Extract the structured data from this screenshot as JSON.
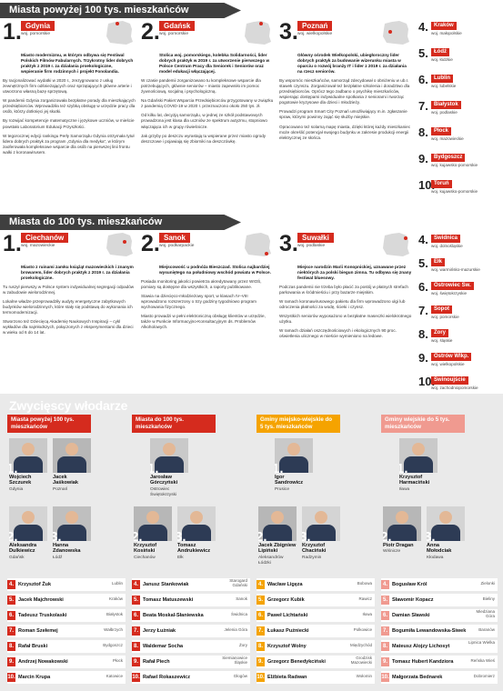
{
  "banner1": "Miasta powyżej 100 tys. mieszkańców",
  "banner2": "Miasta do 100 tys. mieszkańców",
  "winners_title": "Zwycięscy włodarze",
  "big": [
    {
      "num": "1.",
      "name": "Gdynia",
      "woj": "woj. pomorskie",
      "hl": "Miasto modernizmu, w którym odbywa się Festiwal Polskich Filmów Fabularnych. Trzykrotny lider dobrych praktyk z 2019 r. za działania proekologiczne, wspieranie firm rodzinnych i projekt Fonolandia.",
      "paras": [
        "By racjonalizować wydatki w 2020 r., zrezygnowano z usług zewnętrznych firm odśnieżających oraz sprzątających główne arterie i utworzono własną bazę sprzętową.",
        "W pandemii Gdynia zorganizowała bezpłatne porady dla mieszkających przedsiębiorców. Wprowadziła też szybką obsługę w urzędzie pracy dla osób, którzy dotknięci jej skutki.",
        "By rozwijać kompetencje matematyczne i językowe uczniów, w mieście powstało Laboratorium Edukacji Przyszłości.",
        "W tegorocznej edycji rankingu Perły Samorządu Gdynia otrzymała tytuł lidera dobrych praktyk za program „Gdynia dla medyka”, w którym zaoferowała kompleksowe wsparcie dla osób na pierwszej linii frontu walki z koronawirusem."
      ]
    },
    {
      "num": "2.",
      "name": "Gdańsk",
      "woj": "woj. pomorskie",
      "hl": "Stolica woj. pomorskiego, kolebka Solidarności, lider dobrych praktyk w 2019 r. za utworzenie pierwszego w Polsce Centrum Pracy dla Seniorek i Seniorów oraz model edukacji włączającej.",
      "paras": [
        "W czasie pandemii zorganizowano tu kompleksowe wsparcie dla potrzebujących, głównie seniorów – miasto zapewniło im pomoc żywnościową, socjalną i psychologiczną.",
        "Na Gdański Pakiet Wsparcia Przedsiębiorców przygotowany w związku z pandemią COVID-19 w 2020 r. przeznaczono około 250 tys. zł.",
        "Od kilku lat, decyzją samorządu, w jednej ze szkół podstawowych prowadzona jest klasa dla uczniów ze spektrum autyzmu, stopniowo włączająca ich w grupy rówieśnicze.",
        "Jak grzyby po deszczu wyrastają tu wspierane przez miasto ogrody deszczowe i pojawiają się zbiorniki na deszczówkę."
      ]
    },
    {
      "num": "3.",
      "name": "Poznań",
      "woj": "woj. wielkopolskie",
      "hl": "Główny ośrodek Wielkopolski, ubiegłoroczny lider dobrych praktyk za budowanie wizerunku miasta w oparciu o rozwój branży IT i lider z 2019 r. za działania na rzecz seniorów.",
      "paras": [
        "By wspomóc mieszkańców, samorząd zdecydował o obniżeniu w ub.r. stawek czynszu. Zorganizował też bezpłatne szkolenia i doradztwo dla przedsiębiorców. Oprócz tego zadbano o psychikę mieszkańców, wspierając dostępami indywidualne spotkania z seniorami i tworząc pogotowie kryzysowe dla dzieci i młodzieży.",
        "Prowadzi program Smart City Poznań umożliwiający m.in. zgłaszanie spraw, którymi powinny zająć się służby miejskie.",
        "Opracowano też solarną mapę miasta, dzięki której każdy mieszkaniec może określić potencjał swojego budynku w zakresie produkcji energii elektrycznej ze słońca."
      ]
    }
  ],
  "small": [
    {
      "num": "1.",
      "name": "Ciechanów",
      "woj": "woj. mazowieckie",
      "hl": "Miasto z ruinami zamku książąt mazowieckich i znanym browarem, lider dobrych praktyk z 2019 r. za działania proekologiczne.",
      "paras": [
        "Tu ruszył pierwszy w Polsce system indywidualnej segregacji odpadów w zabudowie wielorodzinnej.",
        "Lokalne władze przeprowadziły audyty energetyczne zabytkowych budynków wielorodzinnych, które stały się podstawą do wykonania ich termomodernizacji.",
        "Stworzono też Dziecięcą Akademię Naukowych Inspiracji – cykl wykładów dla najmłodszych, połączonych z eksperymentami dla dzieci w wieku od 6 do 14 lat."
      ]
    },
    {
      "num": "2.",
      "name": "Sanok",
      "woj": "woj. podkarpackie",
      "hl": "Miejscowość u podnóża Bieszczad. Stolica najbardziej wysuniętego na południowy wschód powiatu w Polsce.",
      "paras": [
        "Posiada monitoring jakości powietrza akredytowany przez WIOŚ, pomiary są dostępne dla wszystkich, a raporty publikowane.",
        "Stawia na dziecięco-młodzieżowy sport, w klasach IV–VIII wprowadzono rozszerzony o trzy godziny tygodniowo program wychowania fizycznego.",
        "Miasto prowadzi w pełni elektroniczną obsługę klientów w urzędzie, także w Punkcie Informacyjno-Konsultacyjnym ds. Problemów Alkoholowych."
      ]
    },
    {
      "num": "3.",
      "name": "Suwałki",
      "woj": "woj. podlaskie",
      "hl": "Miejsce narodzin Marii Konopnickiej, uznawane przez niektórych za polski biegun zimna. Tu odbywa się znany festiwal bluesowy.",
      "paras": [
        "Podczas pandemii nie trzeba było płacić za postój w płatnych strefach parkowania w śródmieściu i przy bazarze miejskim.",
        "W ramach koronawirusowego pakietu dla firm wprowadzono ulgi lub odroczenia płatności za wodę, ścieki i czynsz.",
        "Wszystkich seniorów wyposażono w bezpłatne maseczki wielokrotnego użytku.",
        "W ramach działań oszczędnościowych i ekologicznych 90 proc. oświetlenia ulicznego w mieście wymieniono na ledowe."
      ]
    }
  ],
  "rank_big": [
    {
      "num": "4.",
      "name": "Kraków",
      "woj": "woj. małopolskie"
    },
    {
      "num": "5.",
      "name": "Łódź",
      "woj": "woj. łódzkie"
    },
    {
      "num": "6.",
      "name": "Lublin",
      "woj": "woj. lubelskie"
    },
    {
      "num": "7.",
      "name": "Białystok",
      "woj": "woj. podlaskie"
    },
    {
      "num": "8.",
      "name": "Płock",
      "woj": "woj. mazowieckie"
    },
    {
      "num": "9.",
      "name": "Bydgoszcz",
      "woj": "woj. kujawsko-pomorskie"
    },
    {
      "num": "10.",
      "name": "Toruń",
      "woj": "woj. kujawsko-pomorskie"
    }
  ],
  "rank_small": [
    {
      "num": "4.",
      "name": "Świdnica",
      "woj": "woj. dolnośląskie"
    },
    {
      "num": "5.",
      "name": "Ełk",
      "woj": "woj. warmińsko-mazurskie"
    },
    {
      "num": "6.",
      "name": "Ostrowiec Św.",
      "woj": "woj. świętokrzyskie"
    },
    {
      "num": "7.",
      "name": "Sopot",
      "woj": "woj. pomorskie"
    },
    {
      "num": "8.",
      "name": "Żory",
      "woj": "woj. śląskie"
    },
    {
      "num": "9.",
      "name": "Ostrów Wlkp.",
      "woj": "woj. wielkopolskie"
    },
    {
      "num": "10.",
      "name": "Świnoujście",
      "woj": "woj. zachodniopomorskie"
    }
  ],
  "categories": [
    {
      "title": "Miasta powyżej 100 tys. mieszkańców",
      "color": "red",
      "top": [
        {
          "num": "1.",
          "name": "Wojciech Szczurek",
          "city": "Gdynia"
        },
        {
          "num": "",
          "name": "Jacek Jaśkowiak",
          "city": "Poznań"
        },
        {
          "num": "2.",
          "name": "Aleksandra Dulkiewicz",
          "city": "Gdańsk"
        },
        {
          "num": "3.",
          "name": "Hanna Zdanowska",
          "city": "Łódź"
        }
      ],
      "list": [
        {
          "num": "4.",
          "name": "Krzysztof Żuk",
          "city": "Lublin"
        },
        {
          "num": "5.",
          "name": "Jacek Majchrowski",
          "city": "Kraków"
        },
        {
          "num": "6.",
          "name": "Tadeusz Truskolaski",
          "city": "Białystok"
        },
        {
          "num": "7.",
          "name": "Roman Szełemej",
          "city": "Wałbrzych"
        },
        {
          "num": "8.",
          "name": "Rafał Bruski",
          "city": "Bydgoszcz"
        },
        {
          "num": "9.",
          "name": "Andrzej Nowakowski",
          "city": "Płock"
        },
        {
          "num": "10.",
          "name": "Marcin Krupa",
          "city": "Katowice"
        }
      ]
    },
    {
      "title": "Miasta do 100 tys. mieszkańców",
      "color": "red",
      "top": [
        {
          "num": "1.",
          "name": "Jarosław Górczyński",
          "city": "Ostrowiec Świętokrzyski"
        },
        {
          "num": "2.",
          "name": "Krzysztof Kosiński",
          "city": "Ciechanów"
        },
        {
          "num": "3.",
          "name": "Tomasz Andrukiewicz",
          "city": "Ełk"
        }
      ],
      "list": [
        {
          "num": "4.",
          "name": "Janusz Stankowiak",
          "city": "Starogard Gdański"
        },
        {
          "num": "5.",
          "name": "Tomasz Matuszewski",
          "city": "Sanok"
        },
        {
          "num": "6.",
          "name": "Beata Moskal-Słaniewska",
          "city": "Świdnica"
        },
        {
          "num": "7.",
          "name": "Jerzy Łużniak",
          "city": "Jelenia Góra"
        },
        {
          "num": "8.",
          "name": "Waldemar Socha",
          "city": "Żory"
        },
        {
          "num": "9.",
          "name": "Rafał Piech",
          "city": "Siemianowice Śląskie"
        },
        {
          "num": "10.",
          "name": "Rafael Rokaszewicz",
          "city": "Głogów"
        }
      ]
    },
    {
      "title": "Gminy miejsko-wiejskie do 5 tys. mieszkańców",
      "color": "ora",
      "top": [
        {
          "num": "1.",
          "name": "Igor Sandrowicz",
          "city": "Prusice"
        },
        {
          "num": "2.",
          "name": "Jacek Zbigniew Lipiński",
          "city": "Aleksandrów Łódzki"
        },
        {
          "num": "3.",
          "name": "Krzysztof Chaciński",
          "city": "Radzymin"
        }
      ],
      "list": [
        {
          "num": "4.",
          "name": "Wacław Ligęza",
          "city": "Bobowa"
        },
        {
          "num": "5.",
          "name": "Grzegorz Kubik",
          "city": "Rawicz"
        },
        {
          "num": "6.",
          "name": "Paweł Lichtański",
          "city": "Iłowa"
        },
        {
          "num": "7.",
          "name": "Łukasz Puźniecki",
          "city": "Polkowice"
        },
        {
          "num": "8.",
          "name": "Krzysztof Wolny",
          "city": "Międzychód"
        },
        {
          "num": "9.",
          "name": "Grzegorz Benedykciński",
          "city": "Grodzisk Mazowiecki"
        },
        {
          "num": "10.",
          "name": "Elżbieta Radwan",
          "city": "Wołomin"
        }
      ]
    },
    {
      "title": "Gminy wiejskie do 5 tys. mieszkańców",
      "color": "pink",
      "top": [
        {
          "num": "1.",
          "name": "Krzysztof Harmaciński",
          "city": "Iława"
        },
        {
          "num": "2.",
          "name": "Piotr Dragan",
          "city": "Wiśnicze"
        },
        {
          "num": "3.",
          "name": "Anna Mołodciak",
          "city": "Kłodawa"
        }
      ],
      "list": [
        {
          "num": "4.",
          "name": "Bogusław Król",
          "city": "Zielonki"
        },
        {
          "num": "5.",
          "name": "Sławomir Kopacz",
          "city": "Bieliny"
        },
        {
          "num": "6.",
          "name": "Damian Sławski",
          "city": "Miedziana Góra"
        },
        {
          "num": "7.",
          "name": "Bogumiła Lewandowska-Siwek",
          "city": "Baranów"
        },
        {
          "num": "8.",
          "name": "Mateusz Alojzy Lichosyt",
          "city": "Lipnica Wielka"
        },
        {
          "num": "9.",
          "name": "Tomasz Hubert Kandziora",
          "city": "Reńska Wieś"
        },
        {
          "num": "10.",
          "name": "Małgorzata Bednarek",
          "city": "Dobromierz"
        }
      ]
    }
  ],
  "colors": {
    "red": "#d52b1e",
    "dark": "#3f3f3f",
    "ora": "#f5a300",
    "pink": "#f09a90"
  }
}
